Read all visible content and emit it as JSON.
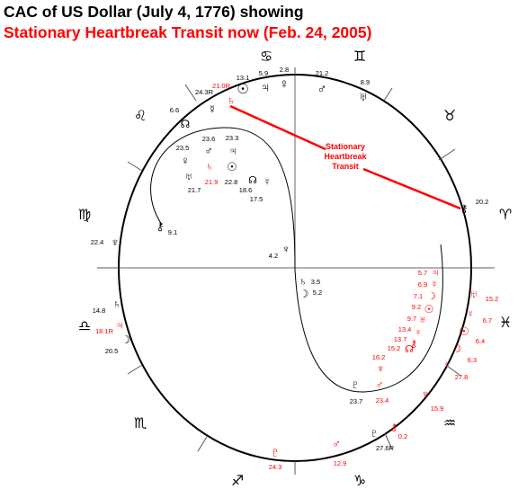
{
  "title": "CAC of US Dollar (July 4, 1776) showing",
  "subtitle": "Stationary Heartbreak Transit now (Feb. 24, 2005)",
  "colors": {
    "natal": "#000000",
    "transit": "#ff0000"
  },
  "annotation": [
    "Stationary",
    "Heartbreak",
    "Transit"
  ],
  "signs": [
    {
      "name": "cancer",
      "glyph": "♋"
    },
    {
      "name": "gemini",
      "glyph": "♊"
    },
    {
      "name": "taurus",
      "glyph": "♉"
    },
    {
      "name": "aries",
      "glyph": "♈"
    },
    {
      "name": "pisces",
      "glyph": "♓"
    },
    {
      "name": "aquarius",
      "glyph": "♒"
    },
    {
      "name": "capricorn",
      "glyph": "♑"
    },
    {
      "name": "sagittarius",
      "glyph": "♐"
    },
    {
      "name": "scorpio",
      "glyph": "♏"
    },
    {
      "name": "libra",
      "glyph": "♎"
    },
    {
      "name": "virgo",
      "glyph": "♍"
    },
    {
      "name": "leo",
      "glyph": "♌"
    }
  ],
  "natal_planets": [
    {
      "name": "sun",
      "glyph": "☉",
      "value": "13.1"
    },
    {
      "name": "jupiter",
      "glyph": "♃",
      "value": "5.9"
    },
    {
      "name": "venus",
      "glyph": "♀",
      "value": "2.8"
    },
    {
      "name": "mars",
      "glyph": "♂",
      "value": "21.2"
    },
    {
      "name": "uranus",
      "glyph": "♅",
      "value": "8.9"
    },
    {
      "name": "mercury",
      "glyph": "☿",
      "value": "24.3R"
    },
    {
      "name": "node",
      "glyph": "☊",
      "value": "6.6"
    },
    {
      "name": "chiron",
      "glyph": "⚷",
      "value": "20.2"
    },
    {
      "name": "venus-inner",
      "glyph": "♀",
      "value": "23.5"
    },
    {
      "name": "mars-inner",
      "glyph": "♂",
      "value": "23.6"
    },
    {
      "name": "jupiter-inner",
      "glyph": "♃",
      "value": "23.3"
    },
    {
      "name": "uranus-inner",
      "glyph": "♅",
      "value": "21.7"
    },
    {
      "name": "sun-inner",
      "glyph": "☉",
      "value": "22.8"
    },
    {
      "name": "node-inner",
      "glyph": "☊",
      "value": "18.6"
    },
    {
      "name": "mercury-inner",
      "glyph": "☿",
      "value": "17.5"
    },
    {
      "name": "chiron-virgo",
      "glyph": "⚷",
      "value": "9.1"
    },
    {
      "name": "neptune",
      "glyph": "♆",
      "value": "22.4"
    },
    {
      "name": "neptune-inner",
      "glyph": "♆",
      "value": "4.2"
    },
    {
      "name": "saturn-inner",
      "glyph": "♄",
      "value": "3.5"
    },
    {
      "name": "moon-inner",
      "glyph": "☽",
      "value": "5.2"
    },
    {
      "name": "saturn",
      "glyph": "♄",
      "value": "14.8"
    },
    {
      "name": "moon",
      "glyph": "☽",
      "value": "20.5"
    },
    {
      "name": "pluto-inner",
      "glyph": "♇",
      "value": "23.7"
    },
    {
      "name": "pluto",
      "glyph": "♇",
      "value": "27.6R"
    }
  ],
  "transit_planets": [
    {
      "name": "saturn",
      "glyph": "♄",
      "value": "21.0R"
    },
    {
      "name": "saturn-inner",
      "glyph": "♄",
      "value": "21.9"
    },
    {
      "name": "jupiter",
      "glyph": "♃",
      "value": "18.1R"
    },
    {
      "name": "jupiter-inner",
      "glyph": "♃",
      "value": "5.7"
    },
    {
      "name": "mercury-inner",
      "glyph": "☿",
      "value": "6.9"
    },
    {
      "name": "moon-inner",
      "glyph": "☽",
      "value": "7.1"
    },
    {
      "name": "sun-inner",
      "glyph": "☉",
      "value": "9.2"
    },
    {
      "name": "uranus-inner",
      "glyph": "♅",
      "value": "9.7"
    },
    {
      "name": "venus-inner",
      "glyph": "♀",
      "value": "13.4"
    },
    {
      "name": "chiron-inner",
      "glyph": "⚷",
      "value": "13.7"
    },
    {
      "name": "node-inner",
      "glyph": "☊",
      "value": "15.2"
    },
    {
      "name": "neptune-inner",
      "glyph": "♆",
      "value": "16.2"
    },
    {
      "name": "mars-inner",
      "glyph": "♂",
      "value": "23.4"
    },
    {
      "name": "uranus",
      "glyph": "♅",
      "value": "15.2"
    },
    {
      "name": "mercury",
      "glyph": "☿",
      "value": "6.7"
    },
    {
      "name": "sun",
      "glyph": "☉",
      "value": "6.4"
    },
    {
      "name": "moon",
      "glyph": "☽",
      "value": "6.3"
    },
    {
      "name": "venus",
      "glyph": "♀",
      "value": "27.8"
    },
    {
      "name": "neptune",
      "glyph": "♆",
      "value": "15.9"
    },
    {
      "name": "chiron",
      "glyph": "⚷",
      "value": "0.2"
    },
    {
      "name": "mars",
      "glyph": "♂",
      "value": "12.9"
    },
    {
      "name": "pluto",
      "glyph": "♇",
      "value": "24.3"
    }
  ]
}
